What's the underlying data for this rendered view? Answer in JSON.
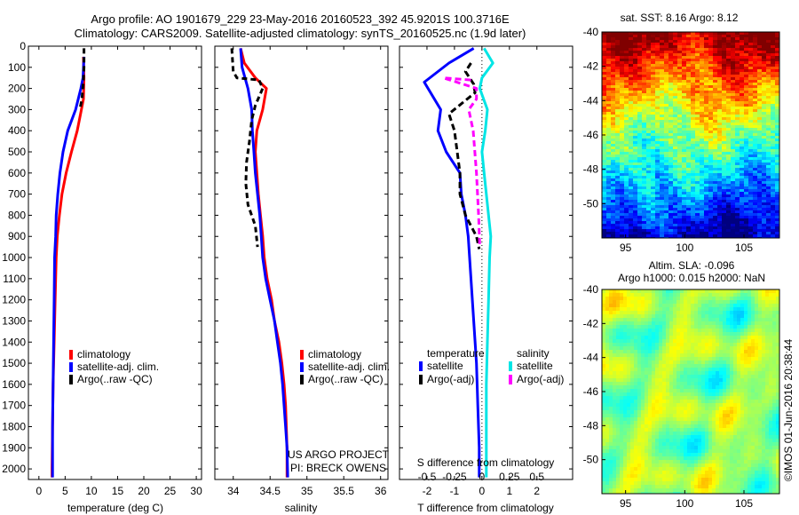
{
  "header": {
    "line1": "Argo profile: AO 1901679_229 23-May-2016 20160523_392 45.9201S 100.3716E",
    "line2": "Climatology: CARS2009. Satellite-adjusted climatology: synTS_20160525.nc (1.9d later)"
  },
  "colors": {
    "climatology": "#ff0000",
    "satellite": "#0000ff",
    "argo": "#000000",
    "sal_sat": "#00e5e5",
    "sal_argo": "#ff00ff"
  },
  "chart_data": [
    {
      "type": "line",
      "id": "temperature",
      "xlabel": "temperature (deg C)",
      "ylabel": "",
      "xlim": [
        -2,
        31
      ],
      "ylim": [
        2050,
        0
      ],
      "xticks": [
        0,
        5,
        10,
        15,
        20,
        25,
        30
      ],
      "yticks": [
        0,
        100,
        200,
        300,
        400,
        500,
        600,
        700,
        800,
        900,
        1000,
        1100,
        1200,
        1300,
        1400,
        1500,
        1600,
        1700,
        1800,
        1900,
        2000
      ],
      "legend": [
        "climatology",
        "satellite-adj. clim.",
        "Argo(..raw -QC)"
      ],
      "series": [
        {
          "name": "climatology",
          "color": "#ff0000",
          "points": [
            [
              8.5,
              50
            ],
            [
              8.6,
              150
            ],
            [
              8.5,
              250
            ],
            [
              8.1,
              300
            ],
            [
              7.3,
              400
            ],
            [
              6.2,
              500
            ],
            [
              5.2,
              600
            ],
            [
              4.4,
              700
            ],
            [
              3.9,
              800
            ],
            [
              3.5,
              900
            ],
            [
              3.3,
              1000
            ],
            [
              3.1,
              1200
            ],
            [
              2.9,
              1400
            ],
            [
              2.7,
              1600
            ],
            [
              2.6,
              1800
            ],
            [
              2.5,
              2000
            ],
            [
              2.5,
              2040
            ]
          ]
        },
        {
          "name": "satellite-adj. clim.",
          "color": "#0000ff",
          "points": [
            [
              8.6,
              50
            ],
            [
              8.4,
              150
            ],
            [
              8.0,
              200
            ],
            [
              7.0,
              300
            ],
            [
              5.5,
              400
            ],
            [
              4.6,
              500
            ],
            [
              4.0,
              600
            ],
            [
              3.6,
              700
            ],
            [
              3.3,
              800
            ],
            [
              3.2,
              900
            ],
            [
              3.0,
              1000
            ],
            [
              2.9,
              1200
            ],
            [
              2.8,
              1400
            ],
            [
              2.7,
              1600
            ],
            [
              2.6,
              1800
            ],
            [
              2.6,
              2000
            ],
            [
              2.6,
              2040
            ]
          ]
        },
        {
          "name": "Argo(..raw -QC)",
          "color": "#000000",
          "points": [
            [
              8.6,
              10
            ],
            [
              8.6,
              100
            ],
            [
              8.5,
              160
            ],
            [
              8.2,
              250
            ],
            [
              7.8,
              300
            ]
          ]
        }
      ]
    },
    {
      "type": "line",
      "id": "salinity",
      "xlabel": "salinity",
      "ylabel": "",
      "xlim": [
        33.75,
        36.1
      ],
      "ylim": [
        2050,
        0
      ],
      "xticks": [
        34,
        34.5,
        35,
        35.5,
        36
      ],
      "yticks": [
        0,
        100,
        200,
        300,
        400,
        500,
        600,
        700,
        800,
        900,
        1000,
        1100,
        1200,
        1300,
        1400,
        1500,
        1600,
        1700,
        1800,
        1900,
        2000
      ],
      "legend": [
        "climatology",
        "satellite-adj. clim.",
        "Argo(..raw -QC)"
      ],
      "annotation": [
        "US ARGO PROJECT",
        "PI: BRECK OWENS"
      ],
      "series": [
        {
          "name": "climatology",
          "color": "#ff0000",
          "points": [
            [
              34.1,
              10
            ],
            [
              34.15,
              80
            ],
            [
              34.3,
              150
            ],
            [
              34.45,
              200
            ],
            [
              34.4,
              300
            ],
            [
              34.32,
              400
            ],
            [
              34.3,
              500
            ],
            [
              34.32,
              600
            ],
            [
              34.34,
              700
            ],
            [
              34.37,
              800
            ],
            [
              34.4,
              900
            ],
            [
              34.42,
              1000
            ],
            [
              34.46,
              1100
            ],
            [
              34.52,
              1200
            ],
            [
              34.56,
              1300
            ],
            [
              34.62,
              1400
            ],
            [
              34.66,
              1500
            ],
            [
              34.69,
              1600
            ],
            [
              34.71,
              1700
            ],
            [
              34.72,
              1800
            ],
            [
              34.73,
              1900
            ],
            [
              34.73,
              2040
            ]
          ]
        },
        {
          "name": "satellite-adj. clim.",
          "color": "#0000ff",
          "points": [
            [
              34.1,
              10
            ],
            [
              34.12,
              100
            ],
            [
              34.2,
              200
            ],
            [
              34.25,
              300
            ],
            [
              34.26,
              400
            ],
            [
              34.28,
              500
            ],
            [
              34.3,
              600
            ],
            [
              34.33,
              700
            ],
            [
              34.36,
              800
            ],
            [
              34.38,
              900
            ],
            [
              34.4,
              1000
            ],
            [
              34.44,
              1100
            ],
            [
              34.5,
              1200
            ],
            [
              34.56,
              1300
            ],
            [
              34.6,
              1400
            ],
            [
              34.64,
              1500
            ],
            [
              34.67,
              1600
            ],
            [
              34.69,
              1700
            ],
            [
              34.71,
              1800
            ],
            [
              34.73,
              1900
            ],
            [
              34.74,
              2040
            ]
          ]
        },
        {
          "name": "Argo(..raw -QC)",
          "color": "#000000",
          "points": [
            [
              33.98,
              10
            ],
            [
              34.0,
              120
            ],
            [
              34.05,
              150
            ],
            [
              34.35,
              160
            ],
            [
              34.4,
              200
            ],
            [
              34.3,
              280
            ],
            [
              34.25,
              350
            ],
            [
              34.22,
              450
            ],
            [
              34.18,
              550
            ],
            [
              34.17,
              650
            ],
            [
              34.2,
              750
            ],
            [
              34.3,
              850
            ],
            [
              34.33,
              950
            ]
          ]
        }
      ]
    },
    {
      "type": "line",
      "id": "difference",
      "xlabel": "T difference from climatology",
      "x2label": "S difference from climatology",
      "xlim": [
        -3,
        3.3
      ],
      "x2lim": [
        -0.75,
        0.825
      ],
      "ylim": [
        2050,
        0
      ],
      "xticks": [
        -2,
        -1,
        0,
        1,
        2
      ],
      "x2ticks": [
        -0.5,
        -0.25,
        0,
        0.25,
        0.5
      ],
      "x2ticklabels": [
        "-0.5",
        "-0.25",
        "0",
        "0.25",
        "0.5"
      ],
      "yticks": [
        0,
        100,
        200,
        300,
        400,
        500,
        600,
        700,
        800,
        900,
        1000,
        1100,
        1200,
        1300,
        1400,
        1500,
        1600,
        1700,
        1800,
        1900,
        2000
      ],
      "legend_temperature_title": "temperature",
      "legend_salinity_title": "salinity",
      "legend": [
        "satellite",
        "Argo(-adj)",
        "satellite",
        "Argo(-adj)"
      ],
      "series": [
        {
          "name": "satellite",
          "group": "temperature",
          "color": "#0000ff",
          "points": [
            [
              -0.3,
              10
            ],
            [
              -1.2,
              80
            ],
            [
              -2.1,
              170
            ],
            [
              -1.5,
              300
            ],
            [
              -1.6,
              400
            ],
            [
              -1.3,
              500
            ],
            [
              -0.8,
              600
            ],
            [
              -0.75,
              700
            ],
            [
              -0.6,
              800
            ],
            [
              -0.5,
              900
            ],
            [
              -0.4,
              1100
            ],
            [
              -0.3,
              1300
            ],
            [
              -0.2,
              1500
            ],
            [
              -0.15,
              1700
            ],
            [
              -0.1,
              1900
            ],
            [
              -0.1,
              2040
            ]
          ]
        },
        {
          "name": "Argo(-adj)",
          "group": "temperature",
          "color": "#000000",
          "points": [
            [
              -0.4,
              80
            ],
            [
              -0.6,
              120
            ],
            [
              -0.5,
              140
            ],
            [
              -0.3,
              180
            ],
            [
              -0.25,
              220
            ],
            [
              -1.2,
              320
            ],
            [
              -1.0,
              400
            ],
            [
              -0.9,
              500
            ],
            [
              -0.8,
              600
            ],
            [
              -0.8,
              700
            ],
            [
              -0.6,
              800
            ],
            [
              -0.2,
              900
            ],
            [
              -0.1,
              960
            ]
          ]
        },
        {
          "name": "satellite",
          "group": "salinity",
          "color": "#00e5e5",
          "points": [
            [
              0.02,
              10
            ],
            [
              0.1,
              80
            ],
            [
              0.0,
              150
            ],
            [
              -0.02,
              200
            ],
            [
              0.05,
              300
            ],
            [
              0.03,
              400
            ],
            [
              0.0,
              500
            ],
            [
              0.02,
              600
            ],
            [
              0.04,
              700
            ],
            [
              0.06,
              800
            ],
            [
              0.08,
              900
            ],
            [
              0.07,
              1000
            ],
            [
              0.06,
              1200
            ],
            [
              0.05,
              1400
            ],
            [
              0.04,
              1600
            ],
            [
              0.04,
              1800
            ],
            [
              0.04,
              2040
            ]
          ]
        },
        {
          "name": "Argo(-adj)",
          "group": "salinity",
          "color": "#ff00ff",
          "points": [
            [
              -0.1,
              160
            ],
            [
              -0.35,
              150
            ],
            [
              -0.05,
              200
            ],
            [
              -0.05,
              250
            ],
            [
              -0.12,
              300
            ],
            [
              -0.08,
              400
            ],
            [
              -0.05,
              600
            ],
            [
              -0.03,
              800
            ],
            [
              -0.02,
              950
            ]
          ]
        }
      ]
    },
    {
      "type": "heatmap",
      "id": "sst-map",
      "title": "sat. SST: 8.16 Argo: 8.12",
      "xlim": [
        93,
        108
      ],
      "ylim": [
        -52,
        -40
      ],
      "xticks": [
        95,
        100,
        105
      ],
      "yticks": [
        -40,
        -42,
        -44,
        -46,
        -48,
        -50
      ]
    },
    {
      "type": "heatmap",
      "id": "sla-map",
      "title_line1": "Altim. SLA: -0.096",
      "title_line2": "Argo h1000: 0.015 h2000: NaN",
      "xlim": [
        93,
        108
      ],
      "ylim": [
        -52,
        -40
      ],
      "xticks": [
        95,
        100,
        105
      ],
      "yticks": [
        -40,
        -42,
        -44,
        -46,
        -48,
        -50
      ],
      "side_label": "©IMOS 01-Jun-2016 20:38:44"
    }
  ]
}
